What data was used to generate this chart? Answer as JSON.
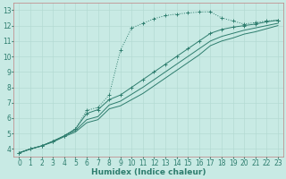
{
  "bg_color": "#c8eae4",
  "grid_color": "#b0d8d0",
  "line_color": "#2e7d6e",
  "xlabel": "Humidex (Indice chaleur)",
  "xlabel_fontsize": 6.5,
  "tick_fontsize": 5.5,
  "xlim": [
    -0.5,
    23.5
  ],
  "ylim": [
    3.5,
    13.5
  ],
  "yticks": [
    4,
    5,
    6,
    7,
    8,
    9,
    10,
    11,
    12,
    13
  ],
  "xticks": [
    0,
    1,
    2,
    3,
    4,
    5,
    6,
    7,
    8,
    9,
    10,
    11,
    12,
    13,
    14,
    15,
    16,
    17,
    18,
    19,
    20,
    21,
    22,
    23
  ],
  "curve1_x": [
    0,
    1,
    2,
    3,
    4,
    5,
    6,
    7,
    8,
    9,
    10,
    11,
    12,
    13,
    14,
    15,
    16,
    17,
    18,
    19,
    20,
    21,
    22,
    23
  ],
  "curve1_y": [
    3.75,
    4.0,
    4.2,
    4.5,
    4.85,
    5.3,
    6.5,
    6.7,
    7.5,
    10.4,
    11.85,
    12.15,
    12.45,
    12.65,
    12.75,
    12.82,
    12.88,
    12.9,
    12.5,
    12.3,
    12.1,
    12.2,
    12.3,
    12.35
  ],
  "curve2_x": [
    0,
    1,
    2,
    3,
    4,
    5,
    6,
    7,
    8,
    9,
    10,
    11,
    12,
    13,
    14,
    15,
    16,
    17,
    18,
    19,
    20,
    21,
    22,
    23
  ],
  "curve2_y": [
    3.75,
    4.0,
    4.2,
    4.5,
    4.85,
    5.3,
    6.3,
    6.55,
    7.2,
    7.5,
    8.0,
    8.5,
    9.0,
    9.5,
    10.0,
    10.5,
    11.0,
    11.5,
    11.75,
    11.9,
    12.0,
    12.1,
    12.25,
    12.35
  ],
  "curve3_x": [
    0,
    1,
    2,
    3,
    4,
    5,
    6,
    7,
    8,
    9,
    10,
    11,
    12,
    13,
    14,
    15,
    16,
    17,
    18,
    19,
    20,
    21,
    22,
    23
  ],
  "curve3_y": [
    3.75,
    4.0,
    4.2,
    4.5,
    4.85,
    5.2,
    5.9,
    6.1,
    6.85,
    7.1,
    7.55,
    8.0,
    8.5,
    9.0,
    9.5,
    10.0,
    10.5,
    11.0,
    11.3,
    11.5,
    11.7,
    11.85,
    12.0,
    12.15
  ],
  "curve4_x": [
    0,
    1,
    2,
    3,
    4,
    5,
    6,
    7,
    8,
    9,
    10,
    11,
    12,
    13,
    14,
    15,
    16,
    17,
    18,
    19,
    20,
    21,
    22,
    23
  ],
  "curve4_y": [
    3.75,
    4.0,
    4.2,
    4.45,
    4.8,
    5.1,
    5.7,
    5.9,
    6.6,
    6.8,
    7.2,
    7.6,
    8.1,
    8.6,
    9.1,
    9.6,
    10.1,
    10.7,
    11.0,
    11.2,
    11.45,
    11.6,
    11.8,
    12.0
  ]
}
